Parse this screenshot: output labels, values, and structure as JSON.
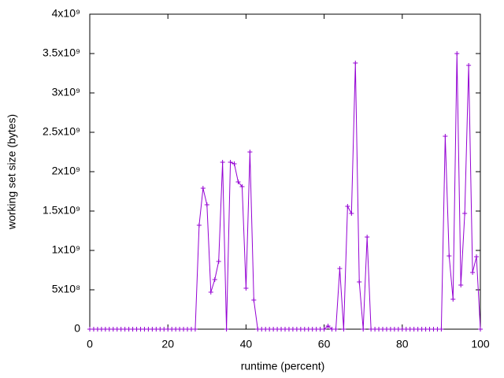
{
  "chart_data": {
    "type": "line",
    "xlabel": "runtime (percent)",
    "ylabel": "working set size (bytes)",
    "x": [
      0,
      1,
      2,
      3,
      4,
      5,
      6,
      7,
      8,
      9,
      10,
      11,
      12,
      13,
      14,
      15,
      16,
      17,
      18,
      19,
      20,
      21,
      22,
      23,
      24,
      25,
      26,
      27,
      28,
      29,
      30,
      31,
      32,
      33,
      34,
      35,
      36,
      37,
      38,
      39,
      40,
      41,
      42,
      43,
      44,
      45,
      46,
      47,
      48,
      49,
      50,
      51,
      52,
      53,
      54,
      55,
      56,
      57,
      58,
      59,
      60,
      61,
      62,
      63,
      64,
      65,
      66,
      67,
      68,
      69,
      70,
      71,
      72,
      73,
      74,
      75,
      76,
      77,
      78,
      79,
      80,
      81,
      82,
      83,
      84,
      85,
      86,
      87,
      88,
      89,
      90,
      91,
      92,
      93,
      94,
      95,
      96,
      97,
      98,
      99,
      100
    ],
    "series": [
      {
        "color": "#9400d3",
        "values": [
          0,
          0,
          0,
          0,
          0,
          0,
          0,
          0,
          0,
          0,
          0,
          0,
          0,
          0,
          0,
          0,
          0,
          0,
          0,
          0,
          0,
          0,
          0,
          0,
          0,
          0,
          0,
          0,
          1320000000,
          1790000000,
          1580000000,
          470000000,
          630000000,
          860000000,
          2120000000,
          0,
          2120000000,
          2100000000,
          1870000000,
          1810000000,
          520000000,
          2250000000,
          370000000,
          0,
          0,
          0,
          0,
          0,
          0,
          0,
          0,
          0,
          0,
          0,
          0,
          0,
          0,
          0,
          0,
          0,
          0,
          40000000,
          0,
          0,
          770000000,
          0,
          1560000000,
          1470000000,
          3380000000,
          600000000,
          0,
          1170000000,
          0,
          0,
          0,
          0,
          0,
          0,
          0,
          0,
          0,
          0,
          0,
          0,
          0,
          0,
          0,
          0,
          0,
          0,
          0,
          2450000000,
          930000000,
          380000000,
          3500000000,
          560000000,
          1470000000,
          3350000000,
          720000000,
          920000000,
          0
        ]
      }
    ],
    "xlim": [
      0,
      100
    ],
    "xticks": [
      0,
      20,
      40,
      60,
      80,
      100
    ],
    "ylim": [
      0,
      4000000000
    ],
    "yticks": [
      0,
      {
        "value": 500000000,
        "label": "5x10⁸"
      },
      {
        "value": 1000000000,
        "label": "1x10⁹"
      },
      {
        "value": 1500000000,
        "label": "1.5x10⁹"
      },
      {
        "value": 2000000000,
        "label": "2x10⁹"
      },
      {
        "value": 2500000000,
        "label": "2.5x10⁹"
      },
      {
        "value": 3000000000,
        "label": "3x10⁹"
      },
      {
        "value": 3500000000,
        "label": "3.5x10⁹"
      },
      {
        "value": 4000000000,
        "label": "4x10⁹"
      }
    ]
  }
}
